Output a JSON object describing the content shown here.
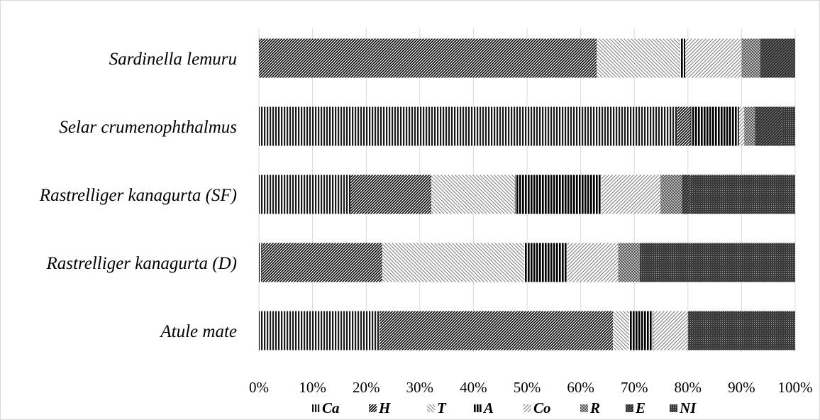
{
  "chart_data": {
    "type": "bar",
    "orientation": "horizontal",
    "stacked": "percent",
    "title": "",
    "xlabel": "",
    "ylabel": "",
    "categories": [
      "Sardinella lemuru",
      "Selar crumenophthalmus",
      "Rastrelliger kanagurta (SF)",
      "Rastrelliger kanagurta (D)",
      "Atule mate"
    ],
    "xlim": [
      0,
      100
    ],
    "x_ticks": [
      "0%",
      "10%",
      "20%",
      "30%",
      "40%",
      "50%",
      "60%",
      "70%",
      "80%",
      "90%",
      "100%"
    ],
    "grid": "vertical",
    "legend_position": "bottom",
    "series": [
      {
        "name": "Ca",
        "values": [
          0,
          78,
          17,
          0.5,
          22.5
        ]
      },
      {
        "name": "H",
        "values": [
          63,
          2.5,
          15,
          22.5,
          43.5
        ]
      },
      {
        "name": "T",
        "values": [
          15.5,
          0,
          15.5,
          26.5,
          3
        ]
      },
      {
        "name": "A",
        "values": [
          1,
          9,
          16,
          8,
          4.5
        ]
      },
      {
        "name": "Co",
        "values": [
          10.5,
          1,
          11,
          9.5,
          6.5
        ]
      },
      {
        "name": "R",
        "values": [
          3.5,
          2,
          4,
          4,
          0
        ]
      },
      {
        "name": "E",
        "values": [
          6.5,
          5,
          1.5,
          0,
          0
        ]
      },
      {
        "name": "NI",
        "values": [
          0,
          2.5,
          19.5,
          29,
          20
        ]
      }
    ]
  }
}
